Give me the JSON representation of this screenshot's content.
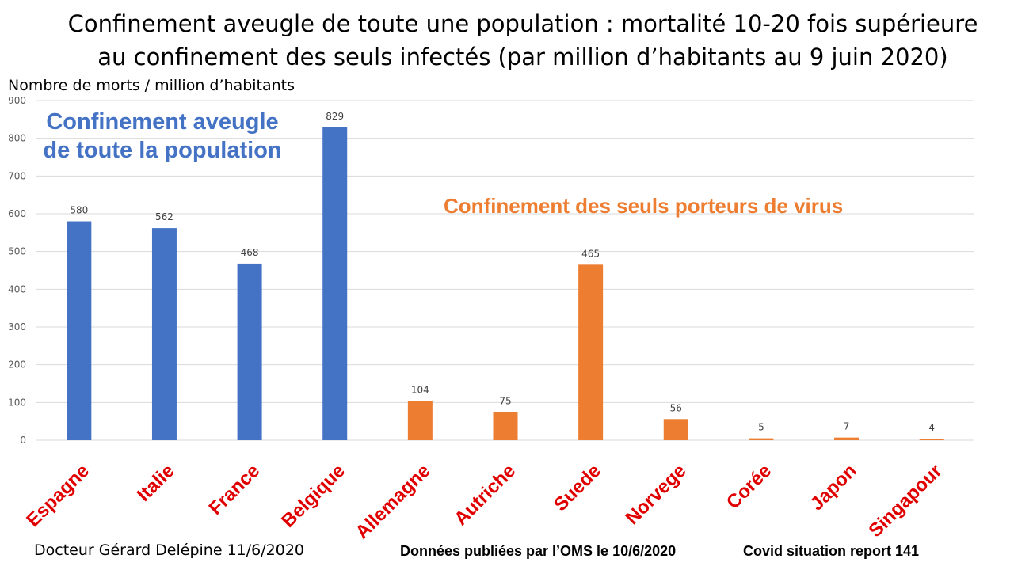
{
  "titles": {
    "line1": "Confinement aveugle de toute une population : mortalité 10-20 fois supérieure",
    "line2": "au confinement des seuls infectés (par million d’habitants au 9 juin 2020)"
  },
  "annotations": {
    "blue_line1": "Confinement aveugle",
    "blue_line2": "de toute la population",
    "orange": "Confinement des seuls porteurs de virus"
  },
  "footer": {
    "author": "Docteur Gérard Delépine 11/6/2020",
    "source": "Données publiées par l’OMS le 10/6/2020",
    "report": "Covid situation report 141"
  },
  "colors": {
    "blue": "#4472C4",
    "orange": "#ED7D31",
    "category_label": "#E00000",
    "grid": "#D9D9D9"
  },
  "chart_data": {
    "type": "bar",
    "ylabel": "Nombre de morts / million d’habitants",
    "ylim": [
      0,
      900
    ],
    "yticks": [
      0,
      100,
      200,
      300,
      400,
      500,
      600,
      700,
      800,
      900
    ],
    "grid": true,
    "categories": [
      "Espagne",
      "Italie",
      "France",
      "Belgique",
      "Allemagne",
      "Autriche",
      "Suede",
      "Norvege",
      "Corée",
      "Japon",
      "Singapour"
    ],
    "values": [
      580,
      562,
      468,
      829,
      104,
      75,
      465,
      56,
      5,
      7,
      4
    ],
    "groups": [
      "blue",
      "blue",
      "blue",
      "blue",
      "orange",
      "orange",
      "orange",
      "orange",
      "orange",
      "orange",
      "orange"
    ]
  }
}
